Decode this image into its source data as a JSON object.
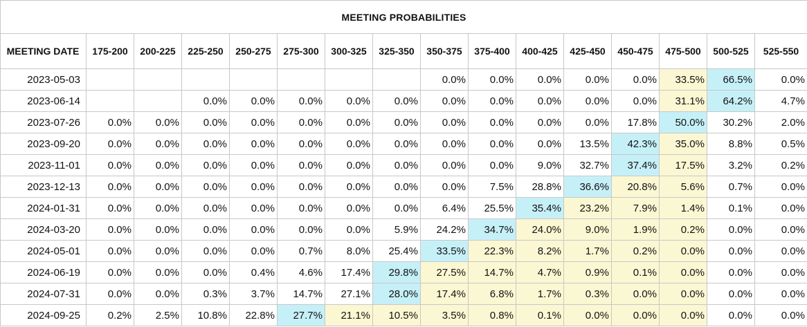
{
  "title": "MEETING PROBABILITIES",
  "colors": {
    "highest": "#c6f0f7",
    "elevated": "#fbf7d3"
  },
  "header": {
    "date_label": "MEETING DATE",
    "ranges": [
      "175-200",
      "200-225",
      "225-250",
      "250-275",
      "275-300",
      "300-325",
      "325-350",
      "350-375",
      "375-400",
      "400-425",
      "425-450",
      "450-475",
      "475-500",
      "500-525",
      "525-550"
    ]
  },
  "rows": [
    {
      "date": "2023-05-03",
      "values": [
        "",
        "",
        "",
        "",
        "",
        "",
        "",
        "0.0%",
        "0.0%",
        "0.0%",
        "0.0%",
        "0.0%",
        "33.5%",
        "66.5%",
        "0.0%"
      ],
      "tiers": [
        "",
        "",
        "",
        "",
        "",
        "",
        "",
        "",
        "",
        "",
        "",
        "",
        "mid",
        "hi",
        ""
      ]
    },
    {
      "date": "2023-06-14",
      "values": [
        "",
        "",
        "0.0%",
        "0.0%",
        "0.0%",
        "0.0%",
        "0.0%",
        "0.0%",
        "0.0%",
        "0.0%",
        "0.0%",
        "0.0%",
        "31.1%",
        "64.2%",
        "4.7%"
      ],
      "tiers": [
        "",
        "",
        "",
        "",
        "",
        "",
        "",
        "",
        "",
        "",
        "",
        "",
        "mid",
        "hi",
        ""
      ]
    },
    {
      "date": "2023-07-26",
      "values": [
        "0.0%",
        "0.0%",
        "0.0%",
        "0.0%",
        "0.0%",
        "0.0%",
        "0.0%",
        "0.0%",
        "0.0%",
        "0.0%",
        "0.0%",
        "17.8%",
        "50.0%",
        "30.2%",
        "2.0%"
      ],
      "tiers": [
        "",
        "",
        "",
        "",
        "",
        "",
        "",
        "",
        "",
        "",
        "",
        "",
        "hi",
        "",
        ""
      ]
    },
    {
      "date": "2023-09-20",
      "values": [
        "0.0%",
        "0.0%",
        "0.0%",
        "0.0%",
        "0.0%",
        "0.0%",
        "0.0%",
        "0.0%",
        "0.0%",
        "0.0%",
        "13.5%",
        "42.3%",
        "35.0%",
        "8.8%",
        "0.5%"
      ],
      "tiers": [
        "",
        "",
        "",
        "",
        "",
        "",
        "",
        "",
        "",
        "",
        "",
        "hi",
        "mid",
        "",
        ""
      ]
    },
    {
      "date": "2023-11-01",
      "values": [
        "0.0%",
        "0.0%",
        "0.0%",
        "0.0%",
        "0.0%",
        "0.0%",
        "0.0%",
        "0.0%",
        "0.0%",
        "9.0%",
        "32.7%",
        "37.4%",
        "17.5%",
        "3.2%",
        "0.2%"
      ],
      "tiers": [
        "",
        "",
        "",
        "",
        "",
        "",
        "",
        "",
        "",
        "",
        "",
        "hi",
        "mid",
        "",
        ""
      ]
    },
    {
      "date": "2023-12-13",
      "values": [
        "0.0%",
        "0.0%",
        "0.0%",
        "0.0%",
        "0.0%",
        "0.0%",
        "0.0%",
        "0.0%",
        "7.5%",
        "28.8%",
        "36.6%",
        "20.8%",
        "5.6%",
        "0.7%",
        "0.0%"
      ],
      "tiers": [
        "",
        "",
        "",
        "",
        "",
        "",
        "",
        "",
        "",
        "",
        "hi",
        "mid",
        "mid",
        "",
        ""
      ]
    },
    {
      "date": "2024-01-31",
      "values": [
        "0.0%",
        "0.0%",
        "0.0%",
        "0.0%",
        "0.0%",
        "0.0%",
        "0.0%",
        "6.4%",
        "25.5%",
        "35.4%",
        "23.2%",
        "7.9%",
        "1.4%",
        "0.1%",
        "0.0%"
      ],
      "tiers": [
        "",
        "",
        "",
        "",
        "",
        "",
        "",
        "",
        "",
        "hi",
        "mid",
        "mid",
        "mid",
        "",
        ""
      ]
    },
    {
      "date": "2024-03-20",
      "values": [
        "0.0%",
        "0.0%",
        "0.0%",
        "0.0%",
        "0.0%",
        "0.0%",
        "5.9%",
        "24.2%",
        "34.7%",
        "24.0%",
        "9.0%",
        "1.9%",
        "0.2%",
        "0.0%",
        "0.0%"
      ],
      "tiers": [
        "",
        "",
        "",
        "",
        "",
        "",
        "",
        "",
        "hi",
        "mid",
        "mid",
        "mid",
        "mid",
        "",
        ""
      ]
    },
    {
      "date": "2024-05-01",
      "values": [
        "0.0%",
        "0.0%",
        "0.0%",
        "0.0%",
        "0.7%",
        "8.0%",
        "25.4%",
        "33.5%",
        "22.3%",
        "8.2%",
        "1.7%",
        "0.2%",
        "0.0%",
        "0.0%",
        "0.0%"
      ],
      "tiers": [
        "",
        "",
        "",
        "",
        "",
        "",
        "",
        "hi",
        "mid",
        "mid",
        "mid",
        "mid",
        "mid",
        "",
        ""
      ]
    },
    {
      "date": "2024-06-19",
      "values": [
        "0.0%",
        "0.0%",
        "0.0%",
        "0.4%",
        "4.6%",
        "17.4%",
        "29.8%",
        "27.5%",
        "14.7%",
        "4.7%",
        "0.9%",
        "0.1%",
        "0.0%",
        "0.0%",
        "0.0%"
      ],
      "tiers": [
        "",
        "",
        "",
        "",
        "",
        "",
        "hi",
        "mid",
        "mid",
        "mid",
        "mid",
        "mid",
        "mid",
        "",
        ""
      ]
    },
    {
      "date": "2024-07-31",
      "values": [
        "0.0%",
        "0.0%",
        "0.3%",
        "3.7%",
        "14.7%",
        "27.1%",
        "28.0%",
        "17.4%",
        "6.8%",
        "1.7%",
        "0.3%",
        "0.0%",
        "0.0%",
        "0.0%",
        "0.0%"
      ],
      "tiers": [
        "",
        "",
        "",
        "",
        "",
        "",
        "hi",
        "mid",
        "mid",
        "mid",
        "mid",
        "mid",
        "mid",
        "",
        ""
      ]
    },
    {
      "date": "2024-09-25",
      "values": [
        "0.2%",
        "2.5%",
        "10.8%",
        "22.8%",
        "27.7%",
        "21.1%",
        "10.5%",
        "3.5%",
        "0.8%",
        "0.1%",
        "0.0%",
        "0.0%",
        "0.0%",
        "0.0%",
        "0.0%"
      ],
      "tiers": [
        "",
        "",
        "",
        "",
        "hi",
        "mid",
        "mid",
        "mid",
        "mid",
        "mid",
        "mid",
        "mid",
        "mid",
        "",
        ""
      ]
    }
  ]
}
